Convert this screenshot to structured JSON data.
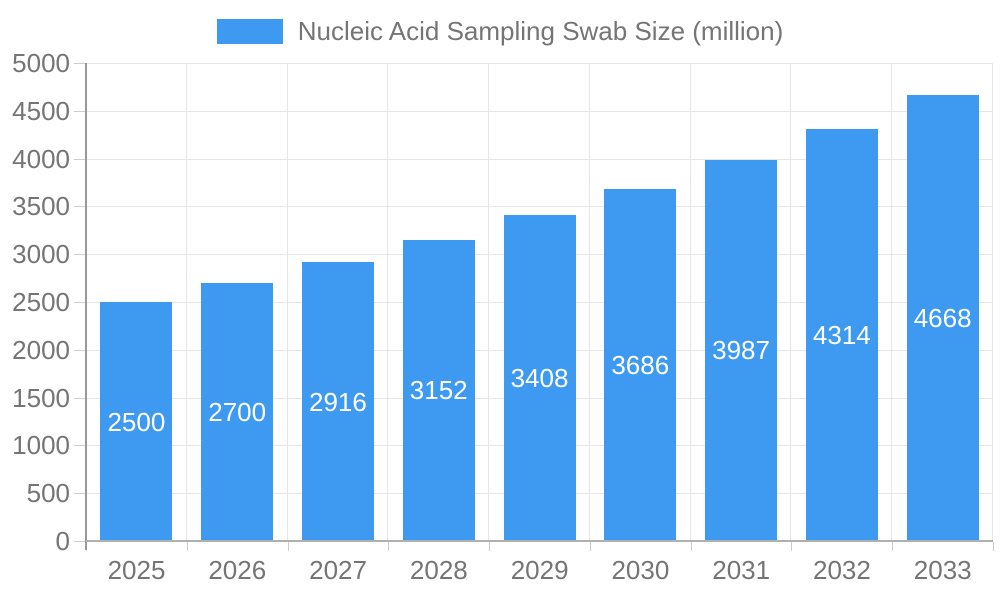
{
  "legend": {
    "label": "Nucleic Acid Sampling Swab Size (million)",
    "swatch_color": "#3D9AF0"
  },
  "colors": {
    "bar": "#3D9AF0",
    "bar_value_label": "#ffffff",
    "axis_label": "#757575",
    "grid_line": "#e6e6e6",
    "axis_line": "#999999",
    "tick": "#cccccc",
    "background": "#ffffff"
  },
  "chart_data": {
    "type": "bar",
    "title": "Nucleic Acid Sampling Swab Size (million)",
    "categories": [
      "2025",
      "2026",
      "2027",
      "2028",
      "2029",
      "2030",
      "2031",
      "2032",
      "2033"
    ],
    "values": [
      2500,
      2700,
      2916,
      3152,
      3408,
      3686,
      3987,
      4314,
      4668
    ],
    "bar_value_labels": [
      "2500",
      "2700",
      "2916",
      "3152",
      "3408",
      "3686",
      "3987",
      "4314",
      "4668"
    ],
    "xlabel": "",
    "ylabel": "",
    "ylim": [
      0,
      5000
    ],
    "y_tick_step": 500,
    "y_tick_labels": [
      "0",
      "500",
      "1000",
      "1500",
      "2000",
      "2500",
      "3000",
      "3500",
      "4000",
      "4500",
      "5000"
    ],
    "grid": true,
    "legend_position": "top",
    "bar_value_label_position": "center-inside"
  }
}
